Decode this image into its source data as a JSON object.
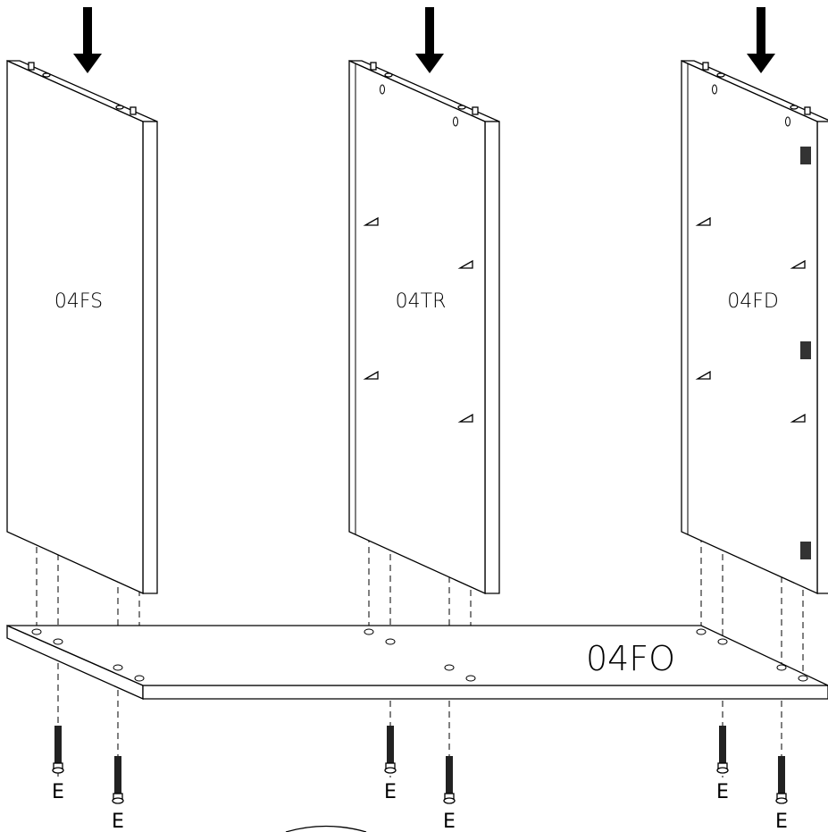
{
  "panels": [
    {
      "label": "04FS"
    },
    {
      "label": "04TR"
    },
    {
      "label": "04FD"
    }
  ],
  "base": {
    "label": "04FO"
  },
  "screws": [
    {
      "label": "E"
    },
    {
      "label": "E"
    },
    {
      "label": "E"
    },
    {
      "label": "E"
    },
    {
      "label": "E"
    },
    {
      "label": "E"
    }
  ]
}
